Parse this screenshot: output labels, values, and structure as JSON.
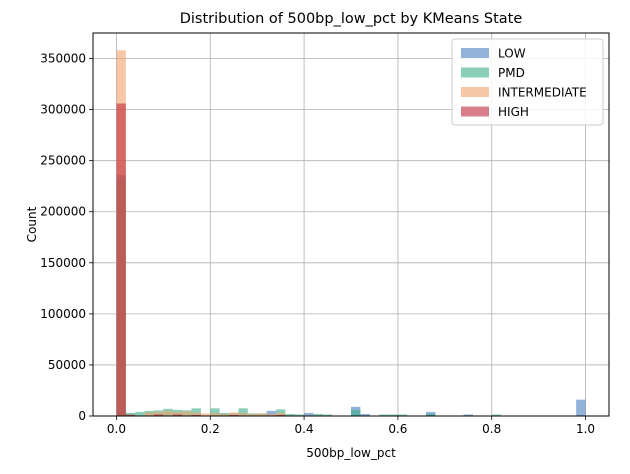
{
  "chart_data": {
    "type": "bar",
    "title": "Distribution of 500bp_low_pct by KMeans State",
    "xlabel": "500bp_low_pct",
    "ylabel": "Count",
    "xlim": [
      -0.05,
      1.05
    ],
    "ylim": [
      0,
      375000
    ],
    "xticks": [
      0.0,
      0.2,
      0.4,
      0.6,
      0.8,
      1.0
    ],
    "xtick_labels": [
      "0.0",
      "0.2",
      "0.4",
      "0.6",
      "0.8",
      "1.0"
    ],
    "yticks": [
      0,
      50000,
      100000,
      150000,
      200000,
      250000,
      300000,
      350000
    ],
    "ytick_labels": [
      "0",
      "50000",
      "100000",
      "150000",
      "200000",
      "250000",
      "300000",
      "350000"
    ],
    "grid": true,
    "legend_position": "top-right",
    "bin_width": 0.02,
    "series": [
      {
        "name": "LOW",
        "color": "#4a7fc0",
        "opacity": 0.6,
        "bins": [
          [
            0.0,
            236000
          ],
          [
            0.02,
            2000
          ],
          [
            0.16,
            1000
          ],
          [
            0.32,
            5000
          ],
          [
            0.4,
            3000
          ],
          [
            0.5,
            9000
          ],
          [
            0.52,
            2000
          ],
          [
            0.66,
            4000
          ],
          [
            0.74,
            1500
          ],
          [
            0.98,
            16000
          ]
        ]
      },
      {
        "name": "PMD",
        "color": "#3cae8a",
        "opacity": 0.6,
        "bins": [
          [
            0.0,
            232000
          ],
          [
            0.02,
            3000
          ],
          [
            0.04,
            4000
          ],
          [
            0.06,
            5000
          ],
          [
            0.08,
            5500
          ],
          [
            0.1,
            7000
          ],
          [
            0.12,
            6000
          ],
          [
            0.14,
            5500
          ],
          [
            0.16,
            7500
          ],
          [
            0.2,
            7500
          ],
          [
            0.22,
            3000
          ],
          [
            0.24,
            2500
          ],
          [
            0.26,
            7500
          ],
          [
            0.28,
            2500
          ],
          [
            0.3,
            2500
          ],
          [
            0.34,
            6500
          ],
          [
            0.36,
            2000
          ],
          [
            0.38,
            1500
          ],
          [
            0.42,
            2000
          ],
          [
            0.44,
            1500
          ],
          [
            0.5,
            6000
          ],
          [
            0.56,
            1500
          ],
          [
            0.58,
            1500
          ],
          [
            0.6,
            1500
          ],
          [
            0.66,
            2000
          ],
          [
            0.8,
            1500
          ]
        ]
      },
      {
        "name": "INTERMEDIATE",
        "color": "#f4a36a",
        "opacity": 0.6,
        "bins": [
          [
            0.0,
            358000
          ],
          [
            0.02,
            1500
          ],
          [
            0.06,
            3500
          ],
          [
            0.08,
            4000
          ],
          [
            0.1,
            5000
          ],
          [
            0.12,
            4000
          ],
          [
            0.14,
            4500
          ],
          [
            0.16,
            3500
          ],
          [
            0.18,
            2500
          ],
          [
            0.2,
            3000
          ],
          [
            0.22,
            2000
          ],
          [
            0.24,
            3500
          ],
          [
            0.26,
            3000
          ],
          [
            0.28,
            2000
          ],
          [
            0.3,
            2500
          ],
          [
            0.32,
            2000
          ],
          [
            0.34,
            3000
          ]
        ]
      },
      {
        "name": "HIGH",
        "color": "#c0293a",
        "opacity": 0.6,
        "bins": [
          [
            0.0,
            306000
          ],
          [
            0.02,
            1000
          ],
          [
            0.08,
            1500
          ],
          [
            0.12,
            1500
          ],
          [
            0.16,
            1000
          ],
          [
            0.24,
            1000
          ],
          [
            0.34,
            1000
          ]
        ]
      }
    ]
  }
}
